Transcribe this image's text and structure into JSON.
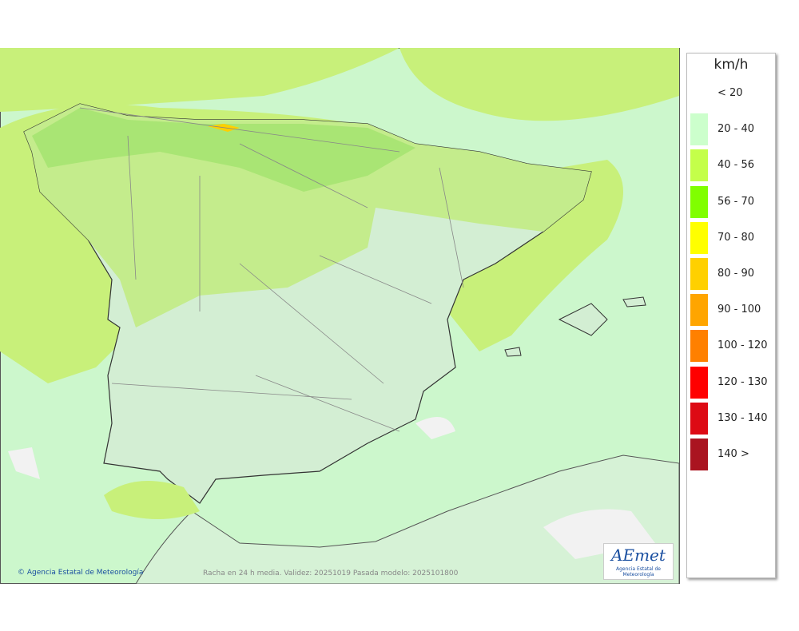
{
  "legend": {
    "unit": "km/h",
    "items": [
      {
        "label": "< 20"
      },
      {
        "label": "20 - 40",
        "color": "#ccffcc"
      },
      {
        "label": "40 - 56",
        "color": "#c4ff4a"
      },
      {
        "label": "56 - 70",
        "color": "#80ff00"
      },
      {
        "label": "70 - 80",
        "color": "#ffff00"
      },
      {
        "label": "80 - 90",
        "color": "#ffd000"
      },
      {
        "label": "90 - 100",
        "color": "#ffa500"
      },
      {
        "label": "100 - 120",
        "color": "#ff8000"
      },
      {
        "label": "120 - 130",
        "color": "#ff0000"
      },
      {
        "label": "130 - 140",
        "color": "#dd0a14"
      },
      {
        "label": "140 >",
        "color": "#aa1420"
      }
    ]
  },
  "footer": {
    "copyright": "Agencia Estatal de Meteorología",
    "caption": "Racha en 24 h media. Validez: 20251019 Pasada modelo: 2025101800"
  },
  "logo": {
    "name": "AEmet",
    "subtitle": "Agencia Estatal de Meteorología"
  }
}
